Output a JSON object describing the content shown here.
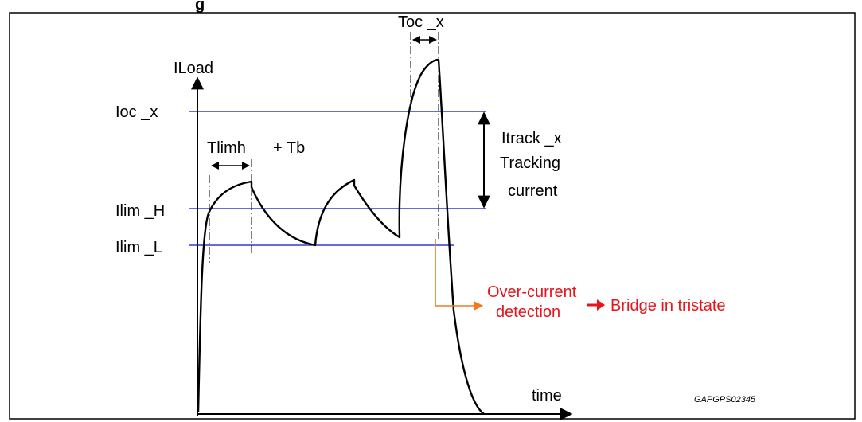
{
  "figure": {
    "title_fragment": "g",
    "code": "GAPGPS02345"
  },
  "axes": {
    "y_label": "ILoad",
    "x_label": "time"
  },
  "levels": {
    "ioc": "Ioc _x",
    "ilim_h": "Ilim _H",
    "ilim_l": "Ilim _L"
  },
  "annotations": {
    "toc": "Toc _x",
    "tlimh": "Tlimh",
    "tb": "+ Tb",
    "itrack": "Itrack _x",
    "tracking": "Tracking",
    "current": "current",
    "overcurrent": "Over-current",
    "detection": "detection",
    "bridge": "Bridge in tristate"
  },
  "colors": {
    "level_lines": "#1010cc",
    "event_arrow": "#f07a1f",
    "event_text": "#e8141b",
    "curve": "#000000"
  }
}
